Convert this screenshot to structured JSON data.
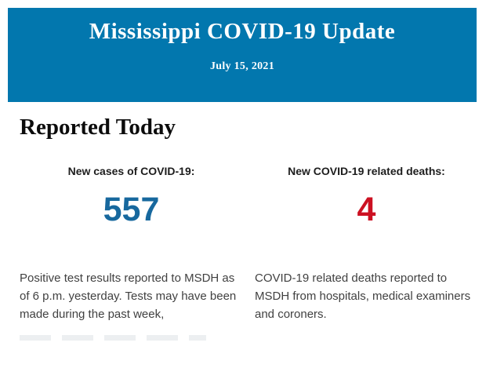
{
  "banner": {
    "title": "Mississippi COVID-19 Update",
    "date": "July 15, 2021",
    "background_color": "#0277AE",
    "text_color": "#FFFFFF"
  },
  "section": {
    "heading": "Reported Today"
  },
  "stats": [
    {
      "label": "New cases of COVID-19:",
      "value": "557",
      "value_color": "#17689E",
      "description": "Positive test results reported to MSDH as of 6 p.m. yesterday. Tests may have been made during the past week,"
    },
    {
      "label": "New COVID-19 related deaths:",
      "value": "4",
      "value_color": "#CC1122",
      "description": "COVID-19 related deaths reported to MSDH from hospitals, medical examiners and coroners."
    }
  ]
}
